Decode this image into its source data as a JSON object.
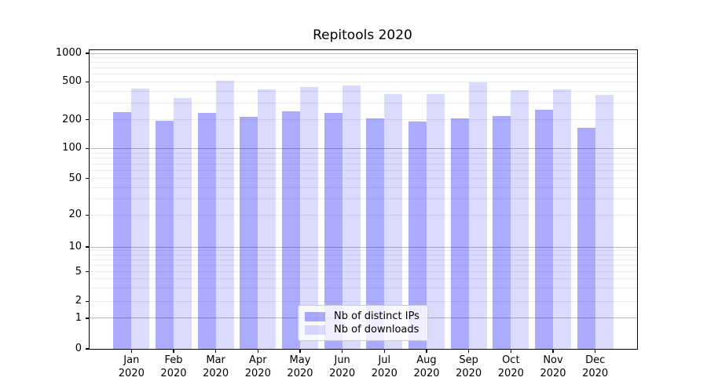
{
  "chart_data": {
    "type": "bar",
    "title": "Repitools 2020",
    "xlabel": "",
    "ylabel": "",
    "categories": [
      "Jan 2020",
      "Feb 2020",
      "Mar 2020",
      "Apr 2020",
      "May 2020",
      "Jun 2020",
      "Jul 2020",
      "Aug 2020",
      "Sep 2020",
      "Oct 2020",
      "Nov 2020",
      "Dec 2020"
    ],
    "series": [
      {
        "name": "Nb of distinct IPs",
        "color": "rgba(0,0,255,0.33)",
        "hex_over_white": "#ababf3",
        "values": [
          240,
          195,
          235,
          215,
          245,
          235,
          205,
          190,
          205,
          220,
          255,
          165
        ]
      },
      {
        "name": "Nb of downloads",
        "color": "rgba(0,0,255,0.14)",
        "hex_over_white": "#dcdcfa",
        "values": [
          425,
          335,
          515,
          415,
          440,
          460,
          370,
          370,
          495,
          410,
          420,
          365
        ]
      }
    ],
    "yscale": "asinh (log-like, linear near 0)",
    "yticks": [
      0,
      1,
      2,
      5,
      10,
      20,
      50,
      100,
      200,
      500,
      1000
    ],
    "ytick_labels": [
      "0",
      "1",
      "2",
      "5",
      "10",
      "20",
      "50",
      "100",
      "200",
      "500",
      "1000"
    ],
    "ylim": [
      0,
      1050
    ],
    "grid": "horizontal, major and minor",
    "legend_position": "lower center, inside axes"
  },
  "colors": {
    "grid_major": "#bbbbbb",
    "grid_minor": "#ececec",
    "spine": "#000000",
    "legend_border": "#cccccc",
    "background": "#ffffff"
  }
}
